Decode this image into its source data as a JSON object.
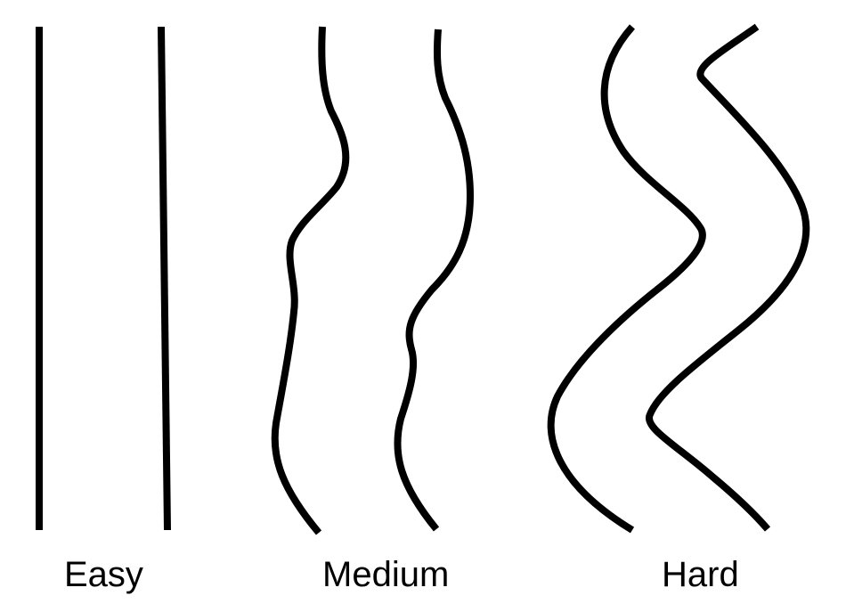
{
  "labels": {
    "easy": "Easy",
    "medium": "Medium",
    "hard": "Hard"
  },
  "colors": {
    "stroke": "#000000",
    "background": "#ffffff"
  }
}
